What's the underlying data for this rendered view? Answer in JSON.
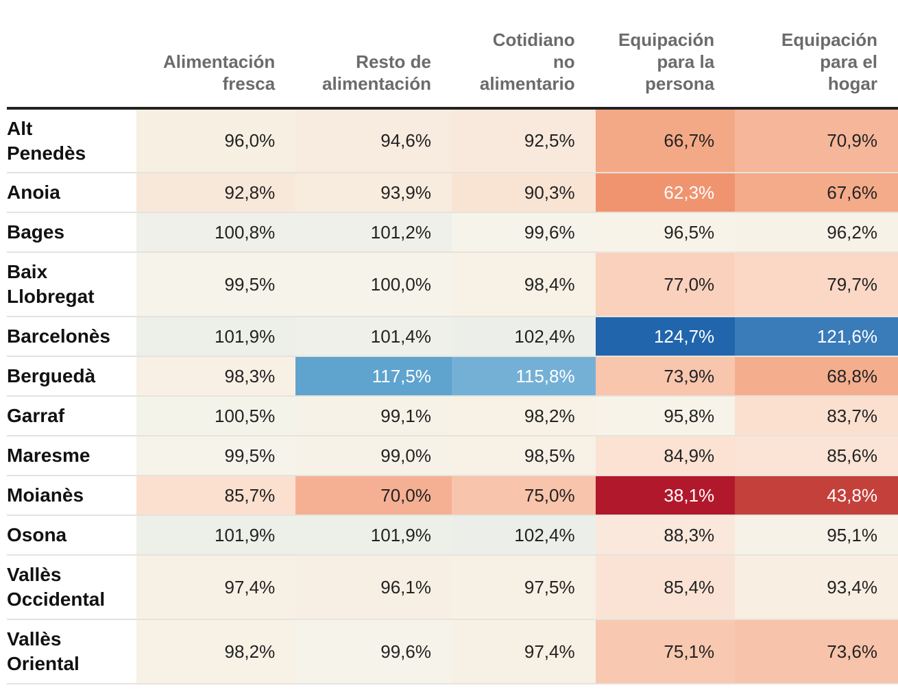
{
  "chart_data": {
    "type": "table",
    "columns": [
      "Alimentación fresca",
      "Resto de alimentación",
      "Cotidiano no alimentario",
      "Equipación para la persona",
      "Equipación para el hogar"
    ],
    "column_lines": [
      [
        "Alimentación",
        "fresca"
      ],
      [
        "Resto de",
        "alimentación"
      ],
      [
        "Cotidiano",
        "no",
        "alimentario"
      ],
      [
        "Equipación",
        "para la",
        "persona"
      ],
      [
        "Equipación",
        "para el",
        "hogar"
      ]
    ],
    "rows": [
      {
        "name": "Alt Penedès",
        "lines": [
          "Alt",
          "Penedès"
        ],
        "values": [
          "96,0%",
          "94,6%",
          "92,5%",
          "66,7%",
          "70,9%"
        ],
        "colors": [
          "#f7efe2",
          "#f8ebe0",
          "#f8e9dc",
          "#f4a986",
          "#f6b699"
        ]
      },
      {
        "name": "Anoia",
        "lines": [
          "Anoia"
        ],
        "values": [
          "92,8%",
          "93,9%",
          "90,3%",
          "62,3%",
          "67,6%"
        ],
        "colors": [
          "#f8e8da",
          "#f8ecdf",
          "#f9e4d4",
          "#f09470",
          "#f4ab89"
        ]
      },
      {
        "name": "Bages",
        "lines": [
          "Bages"
        ],
        "values": [
          "100,8%",
          "101,2%",
          "99,6%",
          "96,5%",
          "96,2%"
        ],
        "colors": [
          "#eef0e9",
          "#eef0e9",
          "#f5f3ea",
          "#f7f3e8",
          "#f7f2e7"
        ]
      },
      {
        "name": "Baix Llobregat",
        "lines": [
          "Baix",
          "Llobregat"
        ],
        "values": [
          "99,5%",
          "100,0%",
          "98,4%",
          "77,0%",
          "79,7%"
        ],
        "colors": [
          "#f6f3ea",
          "#f6f3ea",
          "#f7f1e6",
          "#fad1bd",
          "#fbd8c6"
        ]
      },
      {
        "name": "Barcelonès",
        "lines": [
          "Barcelonès"
        ],
        "values": [
          "101,9%",
          "101,4%",
          "102,4%",
          "124,7%",
          "121,6%"
        ],
        "colors": [
          "#edefe9",
          "#eef0e9",
          "#ecefe9",
          "#2166ac",
          "#3a7bba"
        ]
      },
      {
        "name": "Berguedà",
        "lines": [
          "Berguedà"
        ],
        "values": [
          "98,3%",
          "117,5%",
          "115,8%",
          "73,9%",
          "68,8%"
        ],
        "colors": [
          "#f8f0e4",
          "#5fa3cf",
          "#74b0d6",
          "#f8c5ad",
          "#f4ae8e"
        ]
      },
      {
        "name": "Garraf",
        "lines": [
          "Garraf"
        ],
        "values": [
          "100,5%",
          "99,1%",
          "98,2%",
          "95,8%",
          "83,7%"
        ],
        "colors": [
          "#f3f3ea",
          "#f7f2e7",
          "#f7f1e6",
          "#f7f3e8",
          "#fbdfcf"
        ]
      },
      {
        "name": "Maresme",
        "lines": [
          "Maresme"
        ],
        "values": [
          "99,5%",
          "99,0%",
          "98,5%",
          "84,9%",
          "85,6%"
        ],
        "colors": [
          "#f6f3ea",
          "#f7f2e7",
          "#f7f1e6",
          "#fbe2d3",
          "#fbe4d5"
        ]
      },
      {
        "name": "Moianès",
        "lines": [
          "Moianès"
        ],
        "values": [
          "85,7%",
          "70,0%",
          "75,0%",
          "38,1%",
          "43,8%"
        ],
        "colors": [
          "#fbe0d0",
          "#f5b093",
          "#f8c4ac",
          "#b2182b",
          "#c4413b"
        ]
      },
      {
        "name": "Osona",
        "lines": [
          "Osona"
        ],
        "values": [
          "101,9%",
          "101,9%",
          "102,4%",
          "88,3%",
          "95,1%"
        ],
        "colors": [
          "#edefe9",
          "#edefe9",
          "#ecefe9",
          "#fae8dc",
          "#f7f2e7"
        ]
      },
      {
        "name": "Vallès Occidental",
        "lines": [
          "Vallès",
          "Occidental"
        ],
        "values": [
          "97,4%",
          "96,1%",
          "97,5%",
          "85,4%",
          "93,4%"
        ],
        "colors": [
          "#f7f0e4",
          "#f7efe3",
          "#f7f0e4",
          "#fae3d5",
          "#f8eee2"
        ]
      },
      {
        "name": "Vallès Oriental",
        "lines": [
          "Vallès",
          "Oriental"
        ],
        "values": [
          "98,2%",
          "99,6%",
          "97,4%",
          "75,1%",
          "73,6%"
        ],
        "colors": [
          "#f7f1e6",
          "#f6f3ea",
          "#f7f0e4",
          "#f8c8b0",
          "#f7c3aa"
        ]
      }
    ]
  }
}
